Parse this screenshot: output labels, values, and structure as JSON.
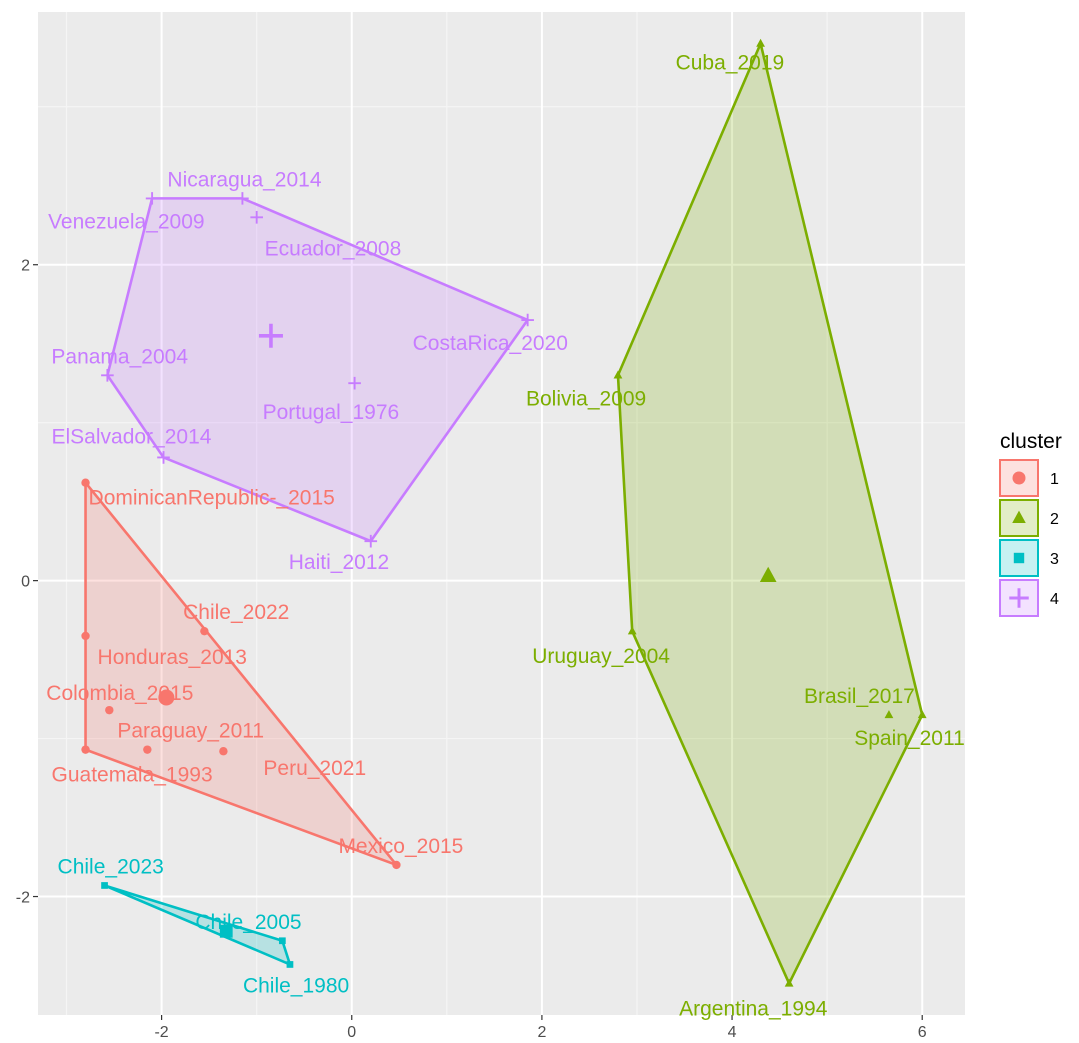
{
  "chart_data": {
    "type": "scatter",
    "title": "",
    "xlabel": "",
    "ylabel": "",
    "xlim": [
      -3.3,
      6.45
    ],
    "ylim": [
      -2.75,
      3.6
    ],
    "x_ticks": [
      -2,
      0,
      2,
      4,
      6
    ],
    "y_ticks": [
      -2,
      0,
      2
    ],
    "x_tick_labels": [
      "-2",
      "0",
      "2",
      "4",
      "6"
    ],
    "y_tick_labels": [
      "-2",
      "0",
      "2"
    ],
    "grid": true,
    "legend": {
      "title": "cluster",
      "position": "right",
      "entries": [
        "1",
        "2",
        "3",
        "4"
      ]
    },
    "colors": {
      "1": "#F8766D",
      "2": "#7CAE00",
      "3": "#00BFC4",
      "4": "#C77CFF"
    },
    "clusters": [
      {
        "name": "1",
        "shape": "circle",
        "centroid": [
          -1.95,
          -0.74
        ],
        "points": [
          {
            "label": "DominicanRepublic-_2015",
            "x": -2.8,
            "y": 0.62
          },
          {
            "label": "Chile_2022",
            "x": -1.55,
            "y": -0.32
          },
          {
            "label": "Honduras_2013",
            "x": -2.8,
            "y": -0.35
          },
          {
            "label": "Colombia_2015",
            "x": -2.55,
            "y": -0.82
          },
          {
            "label": "Paraguay_2011",
            "x": -2.15,
            "y": -1.07
          },
          {
            "label": "Guatemala_1993",
            "x": -2.8,
            "y": -1.07
          },
          {
            "label": "Peru_2021",
            "x": -1.35,
            "y": -1.08
          },
          {
            "label": "Mexico_2015",
            "x": 0.47,
            "y": -1.8
          }
        ],
        "hull": [
          [
            -2.8,
            0.62
          ],
          [
            -2.8,
            -1.07
          ],
          [
            0.47,
            -1.8
          ]
        ]
      },
      {
        "name": "2",
        "shape": "triangle",
        "centroid": [
          4.38,
          0.03
        ],
        "points": [
          {
            "label": "Cuba_2019",
            "x": 4.3,
            "y": 3.4
          },
          {
            "label": "Bolivia_2009",
            "x": 2.8,
            "y": 1.3
          },
          {
            "label": "Uruguay_2004",
            "x": 2.95,
            "y": -0.32
          },
          {
            "label": "Brasil_2017",
            "x": 5.65,
            "y": -0.85
          },
          {
            "label": "Spain_2011",
            "x": 6.0,
            "y": -0.85
          },
          {
            "label": "Argentina_1994",
            "x": 4.6,
            "y": -2.55
          }
        ],
        "hull": [
          [
            4.3,
            3.4
          ],
          [
            6.0,
            -0.85
          ],
          [
            4.6,
            -2.55
          ],
          [
            2.95,
            -0.32
          ],
          [
            2.8,
            1.3
          ]
        ]
      },
      {
        "name": "3",
        "shape": "square",
        "centroid": [
          -1.32,
          -2.22
        ],
        "points": [
          {
            "label": "Chile_2023",
            "x": -2.6,
            "y": -1.93
          },
          {
            "label": "Chile_2005",
            "x": -0.73,
            "y": -2.28
          },
          {
            "label": "Chile_1980",
            "x": -0.65,
            "y": -2.43
          }
        ],
        "hull": [
          [
            -2.6,
            -1.93
          ],
          [
            -0.73,
            -2.28
          ],
          [
            -0.65,
            -2.43
          ]
        ]
      },
      {
        "name": "4",
        "shape": "plus",
        "centroid": [
          -0.85,
          1.55
        ],
        "points": [
          {
            "label": "Nicaragua_2014",
            "x": -1.15,
            "y": 2.42
          },
          {
            "label": "Venezuela_2009",
            "x": -2.1,
            "y": 2.42
          },
          {
            "label": "Ecuador_2008",
            "x": -1.0,
            "y": 2.3
          },
          {
            "label": "CostaRica_2020",
            "x": 1.85,
            "y": 1.65
          },
          {
            "label": "Panama_2004",
            "x": -2.57,
            "y": 1.3
          },
          {
            "label": "Portugal_1976",
            "x": 0.03,
            "y": 1.25
          },
          {
            "label": "ElSalvador_2014",
            "x": -1.98,
            "y": 0.78
          },
          {
            "label": "Haiti_2012",
            "x": 0.2,
            "y": 0.25
          }
        ],
        "hull": [
          [
            -2.1,
            2.42
          ],
          [
            -1.15,
            2.42
          ],
          [
            1.85,
            1.65
          ],
          [
            0.2,
            0.25
          ],
          [
            -1.98,
            0.78
          ],
          [
            -2.57,
            1.3
          ]
        ]
      }
    ]
  }
}
